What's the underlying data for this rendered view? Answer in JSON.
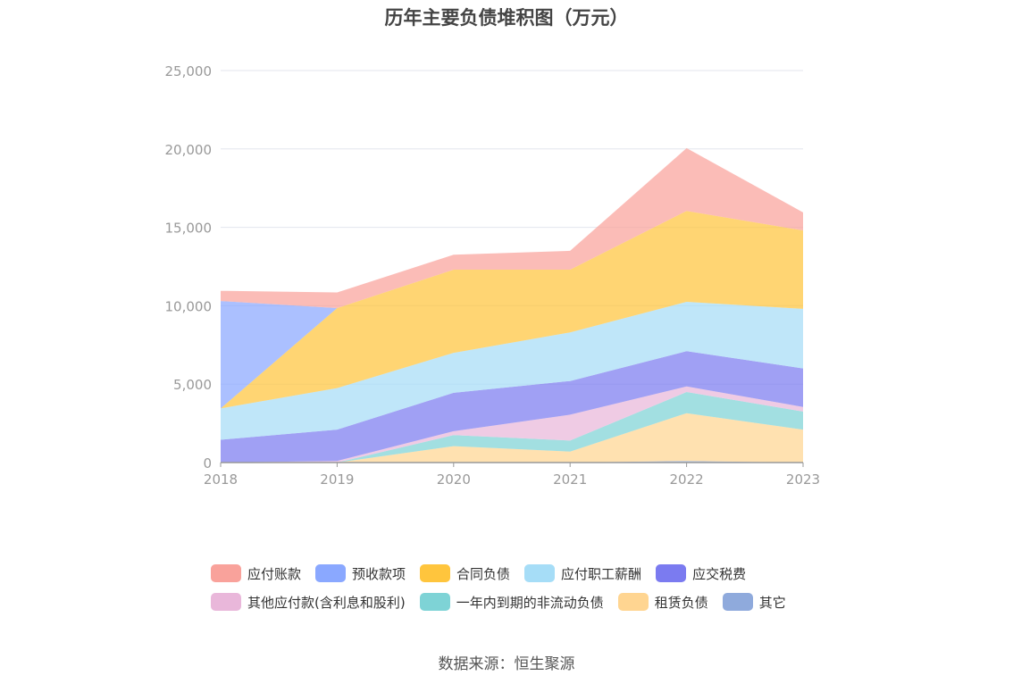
{
  "chart_data": {
    "type": "area",
    "title": "历年主要负债堆积图（万元）",
    "x": [
      "2018",
      "2019",
      "2020",
      "2021",
      "2022",
      "2023"
    ],
    "y_ticks": [
      "0",
      "5,000",
      "10,000",
      "15,000",
      "20,000",
      "25,000"
    ],
    "ylim": [
      0,
      25000
    ],
    "stacked": true,
    "grid": true,
    "legend_position": "bottom",
    "series": [
      {
        "name": "其它",
        "color": "#8FAADC",
        "values": [
          0,
          0,
          0,
          0,
          100,
          0
        ]
      },
      {
        "name": "租赁负债",
        "color": "#FFD591",
        "values": [
          0,
          0,
          1050,
          700,
          3050,
          2100
        ]
      },
      {
        "name": "一年内到期的非流动负债",
        "color": "#7ED3D6",
        "values": [
          0,
          0,
          700,
          700,
          1350,
          1150
        ]
      },
      {
        "name": "其他应付款(含利息和股利)",
        "color": "#E9B7DA",
        "values": [
          0,
          100,
          250,
          1650,
          350,
          300
        ]
      },
      {
        "name": "应交税费",
        "color": "#7B7BF0",
        "values": [
          1450,
          2000,
          2450,
          2150,
          2250,
          2450
        ]
      },
      {
        "name": "应付职工薪酬",
        "color": "#A6DDF7",
        "values": [
          2000,
          2650,
          2550,
          3100,
          3150,
          3800
        ]
      },
      {
        "name": "合同负债",
        "color": "#FFC53D",
        "values": [
          0,
          5100,
          5300,
          4000,
          5800,
          5000
        ]
      },
      {
        "name": "预收款项",
        "color": "#8AA8FF",
        "values": [
          6850,
          0,
          0,
          0,
          0,
          0
        ]
      },
      {
        "name": "应付账款",
        "color": "#F9A29B",
        "values": [
          650,
          1000,
          950,
          1200,
          4000,
          1150
        ]
      }
    ]
  },
  "legend": {
    "row1": [
      {
        "label": "应付账款",
        "color": "#F9A29B"
      },
      {
        "label": "预收款项",
        "color": "#8AA8FF"
      },
      {
        "label": "合同负债",
        "color": "#FFC53D"
      },
      {
        "label": "应付职工薪酬",
        "color": "#A6DDF7"
      },
      {
        "label": "应交税费",
        "color": "#7B7BF0"
      }
    ],
    "row2": [
      {
        "label": "其他应付款(含利息和股利)",
        "color": "#E9B7DA"
      },
      {
        "label": "一年内到期的非流动负债",
        "color": "#7ED3D6"
      },
      {
        "label": "租赁负债",
        "color": "#FFD591"
      },
      {
        "label": "其它",
        "color": "#8FAADC"
      }
    ]
  },
  "source": "数据来源：恒生聚源"
}
